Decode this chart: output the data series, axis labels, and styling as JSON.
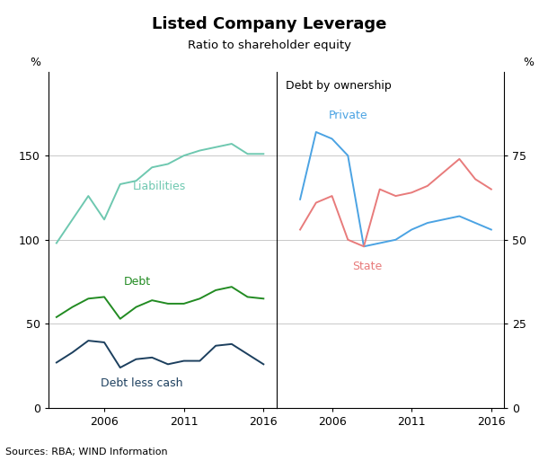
{
  "title": "Listed Company Leverage",
  "subtitle": "Ratio to shareholder equity",
  "source": "Sources: RBA; WIND Information",
  "left_panel": {
    "years": [
      2003,
      2004,
      2005,
      2006,
      2007,
      2008,
      2009,
      2010,
      2011,
      2012,
      2013,
      2014,
      2015,
      2016
    ],
    "liabilities": [
      98,
      112,
      126,
      112,
      133,
      135,
      143,
      145,
      150,
      153,
      155,
      157,
      151,
      151
    ],
    "debt": [
      54,
      60,
      65,
      66,
      53,
      60,
      64,
      62,
      62,
      65,
      70,
      72,
      66,
      65
    ],
    "debt_less_cash": [
      27,
      33,
      40,
      39,
      24,
      29,
      30,
      26,
      28,
      28,
      37,
      38,
      32,
      26
    ],
    "xlim": [
      2002.5,
      2016.8
    ],
    "ylim": [
      0,
      200
    ],
    "yticks": [
      0,
      50,
      100,
      150
    ],
    "xticks": [
      2006,
      2011,
      2016
    ],
    "liabilities_color": "#6EC8B0",
    "debt_color": "#228B22",
    "debt_less_cash_color": "#1C3F5E"
  },
  "right_panel": {
    "years": [
      2004,
      2005,
      2006,
      2007,
      2008,
      2009,
      2010,
      2011,
      2012,
      2013,
      2014,
      2015,
      2016
    ],
    "private": [
      62,
      82,
      80,
      75,
      48,
      49,
      50,
      53,
      55,
      56,
      57,
      55,
      53
    ],
    "state": [
      53,
      61,
      63,
      50,
      48,
      65,
      63,
      64,
      66,
      70,
      74,
      68,
      65
    ],
    "xlim": [
      2002.5,
      2016.8
    ],
    "ylim": [
      0,
      100
    ],
    "yticks": [
      0,
      25,
      50,
      75
    ],
    "xticks": [
      2006,
      2011,
      2016
    ],
    "private_color": "#4BA3E3",
    "state_color": "#E87B7B",
    "panel_label": "Debt by ownership"
  },
  "bg_color": "#FFFFFF",
  "grid_color": "#C8C8C8",
  "grid_linewidth": 0.7
}
